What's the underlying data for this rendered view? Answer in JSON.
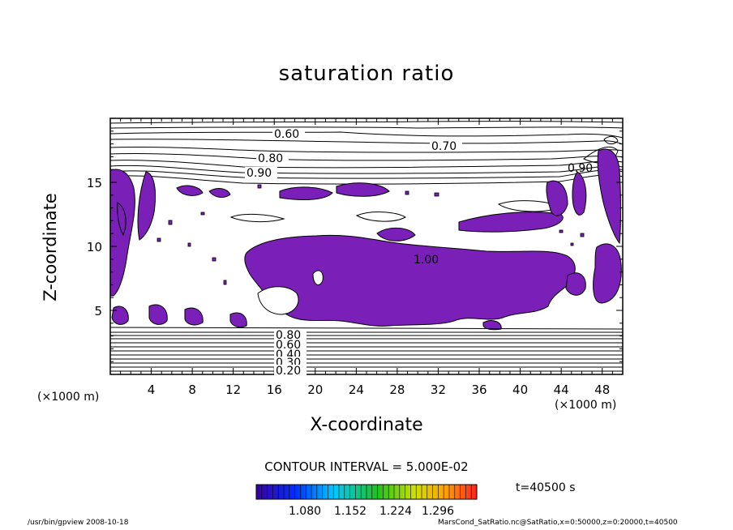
{
  "chart_data": {
    "type": "contour",
    "title": "saturation ratio",
    "xlabel": "X-coordinate",
    "ylabel": "Z-coordinate",
    "x_unit": "(×1000 m)",
    "z_unit": "(×1000 m)",
    "xlim": [
      0,
      50
    ],
    "ylim": [
      0,
      20
    ],
    "x_ticks": [
      4,
      8,
      12,
      16,
      20,
      24,
      28,
      32,
      36,
      40,
      44,
      48
    ],
    "y_ticks": [
      5,
      10,
      15
    ],
    "contour_labels": [
      "0.60",
      "0.70",
      "0.80",
      "0.90",
      "0.90",
      "1.00",
      "0.80",
      "0.60",
      "0.40",
      "0.30",
      "0.20"
    ],
    "contour_interval": "CONTOUR INTERVAL = 5.000E-02",
    "shading": {
      "threshold": 1.0,
      "color": "#7a1fb8",
      "colorbar_ticks": [
        "1.080",
        "1.152",
        "1.224",
        "1.296"
      ]
    },
    "time": "t=40500 s"
  },
  "footer": {
    "left": "/usr/bin/gpview   2008-10-18",
    "right": "MarsCond_SatRatio.nc@SatRatio,x=0:50000,z=0:20000,t=40500"
  }
}
